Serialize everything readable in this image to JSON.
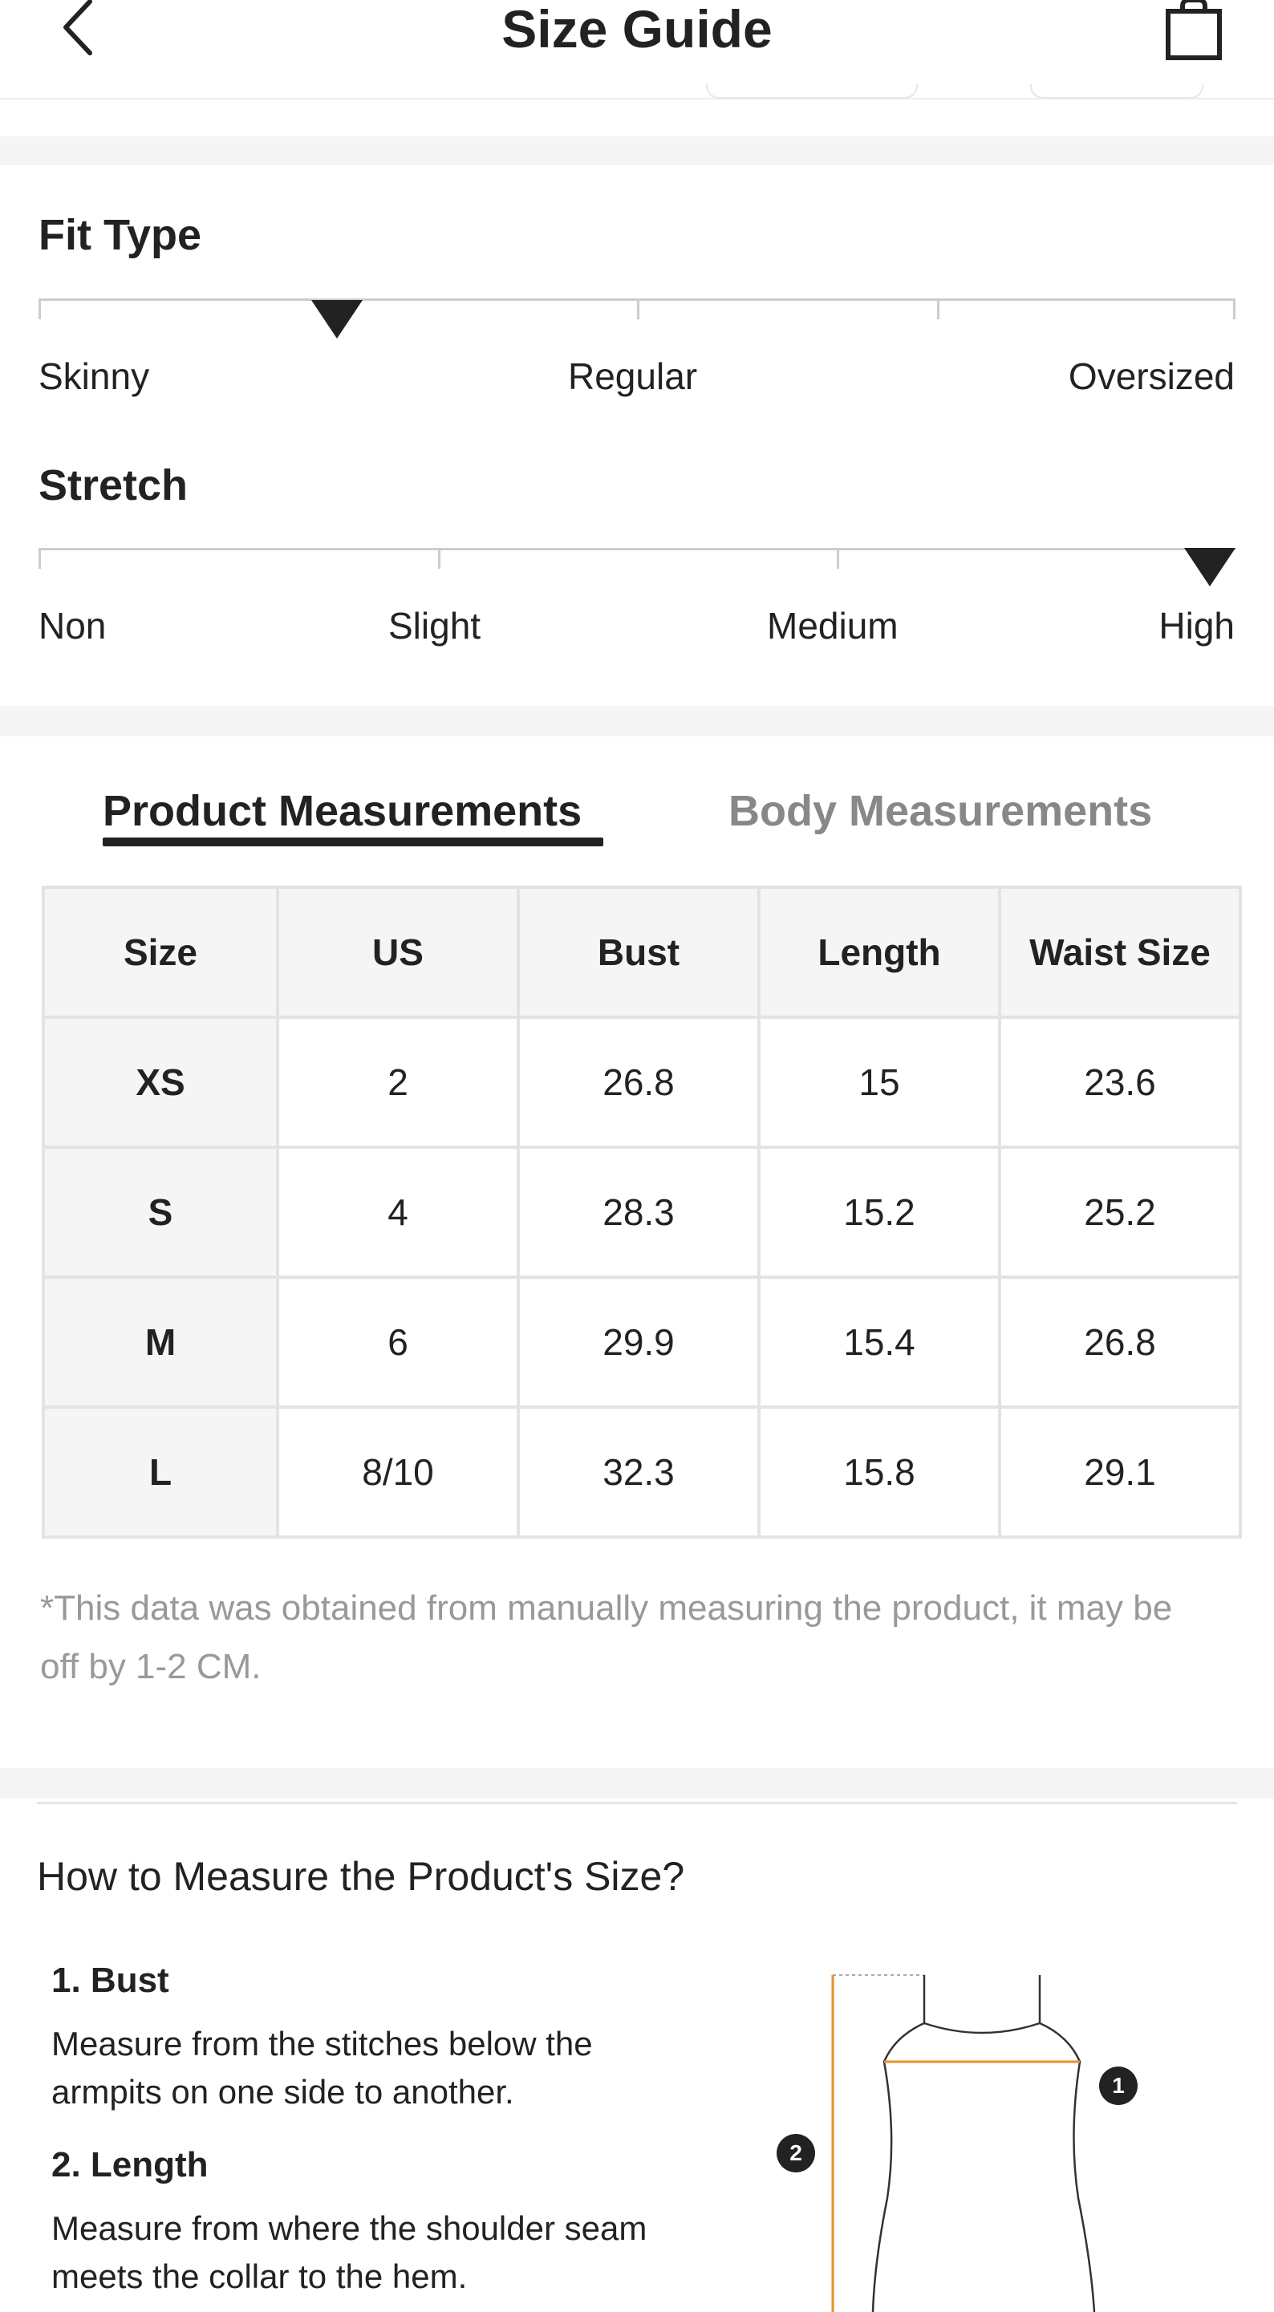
{
  "header": {
    "title": "Size Guide",
    "back_icon": "chevron-left-icon",
    "bag_icon": "shopping-bag-icon"
  },
  "fit_type": {
    "title": "Fit Type",
    "labels": [
      "Skinny",
      "Regular",
      "Oversized"
    ],
    "selected_fraction": 0.25
  },
  "stretch": {
    "title": "Stretch",
    "labels": [
      "Non",
      "Slight",
      "Medium",
      "High"
    ],
    "selected": "High"
  },
  "tabs": {
    "product": "Product Measurements",
    "body": "Body Measurements",
    "active": "product"
  },
  "table": {
    "headers": [
      "Size",
      "US",
      "Bust",
      "Length",
      "Waist Size"
    ],
    "rows": [
      [
        "XS",
        "2",
        "26.8",
        "15",
        "23.6"
      ],
      [
        "S",
        "4",
        "28.3",
        "15.2",
        "25.2"
      ],
      [
        "M",
        "6",
        "29.9",
        "15.4",
        "26.8"
      ],
      [
        "L",
        "8/10",
        "32.3",
        "15.8",
        "29.1"
      ]
    ]
  },
  "note": "*This data was obtained from manually measuring the product, it may be off by 1-2 CM.",
  "howto": {
    "title": "How to Measure the Product's Size?",
    "steps": [
      {
        "title": "1. Bust",
        "desc": "Measure from the stitches below the armpits on one side to another."
      },
      {
        "title": "2. Length",
        "desc": "Measure from where the shoulder seam meets the collar to the hem."
      }
    ],
    "markers": [
      "1",
      "2"
    ]
  },
  "colors": {
    "accent": "#e8922a",
    "text": "#222222",
    "muted": "#888888",
    "band": "#f5f5f5"
  }
}
